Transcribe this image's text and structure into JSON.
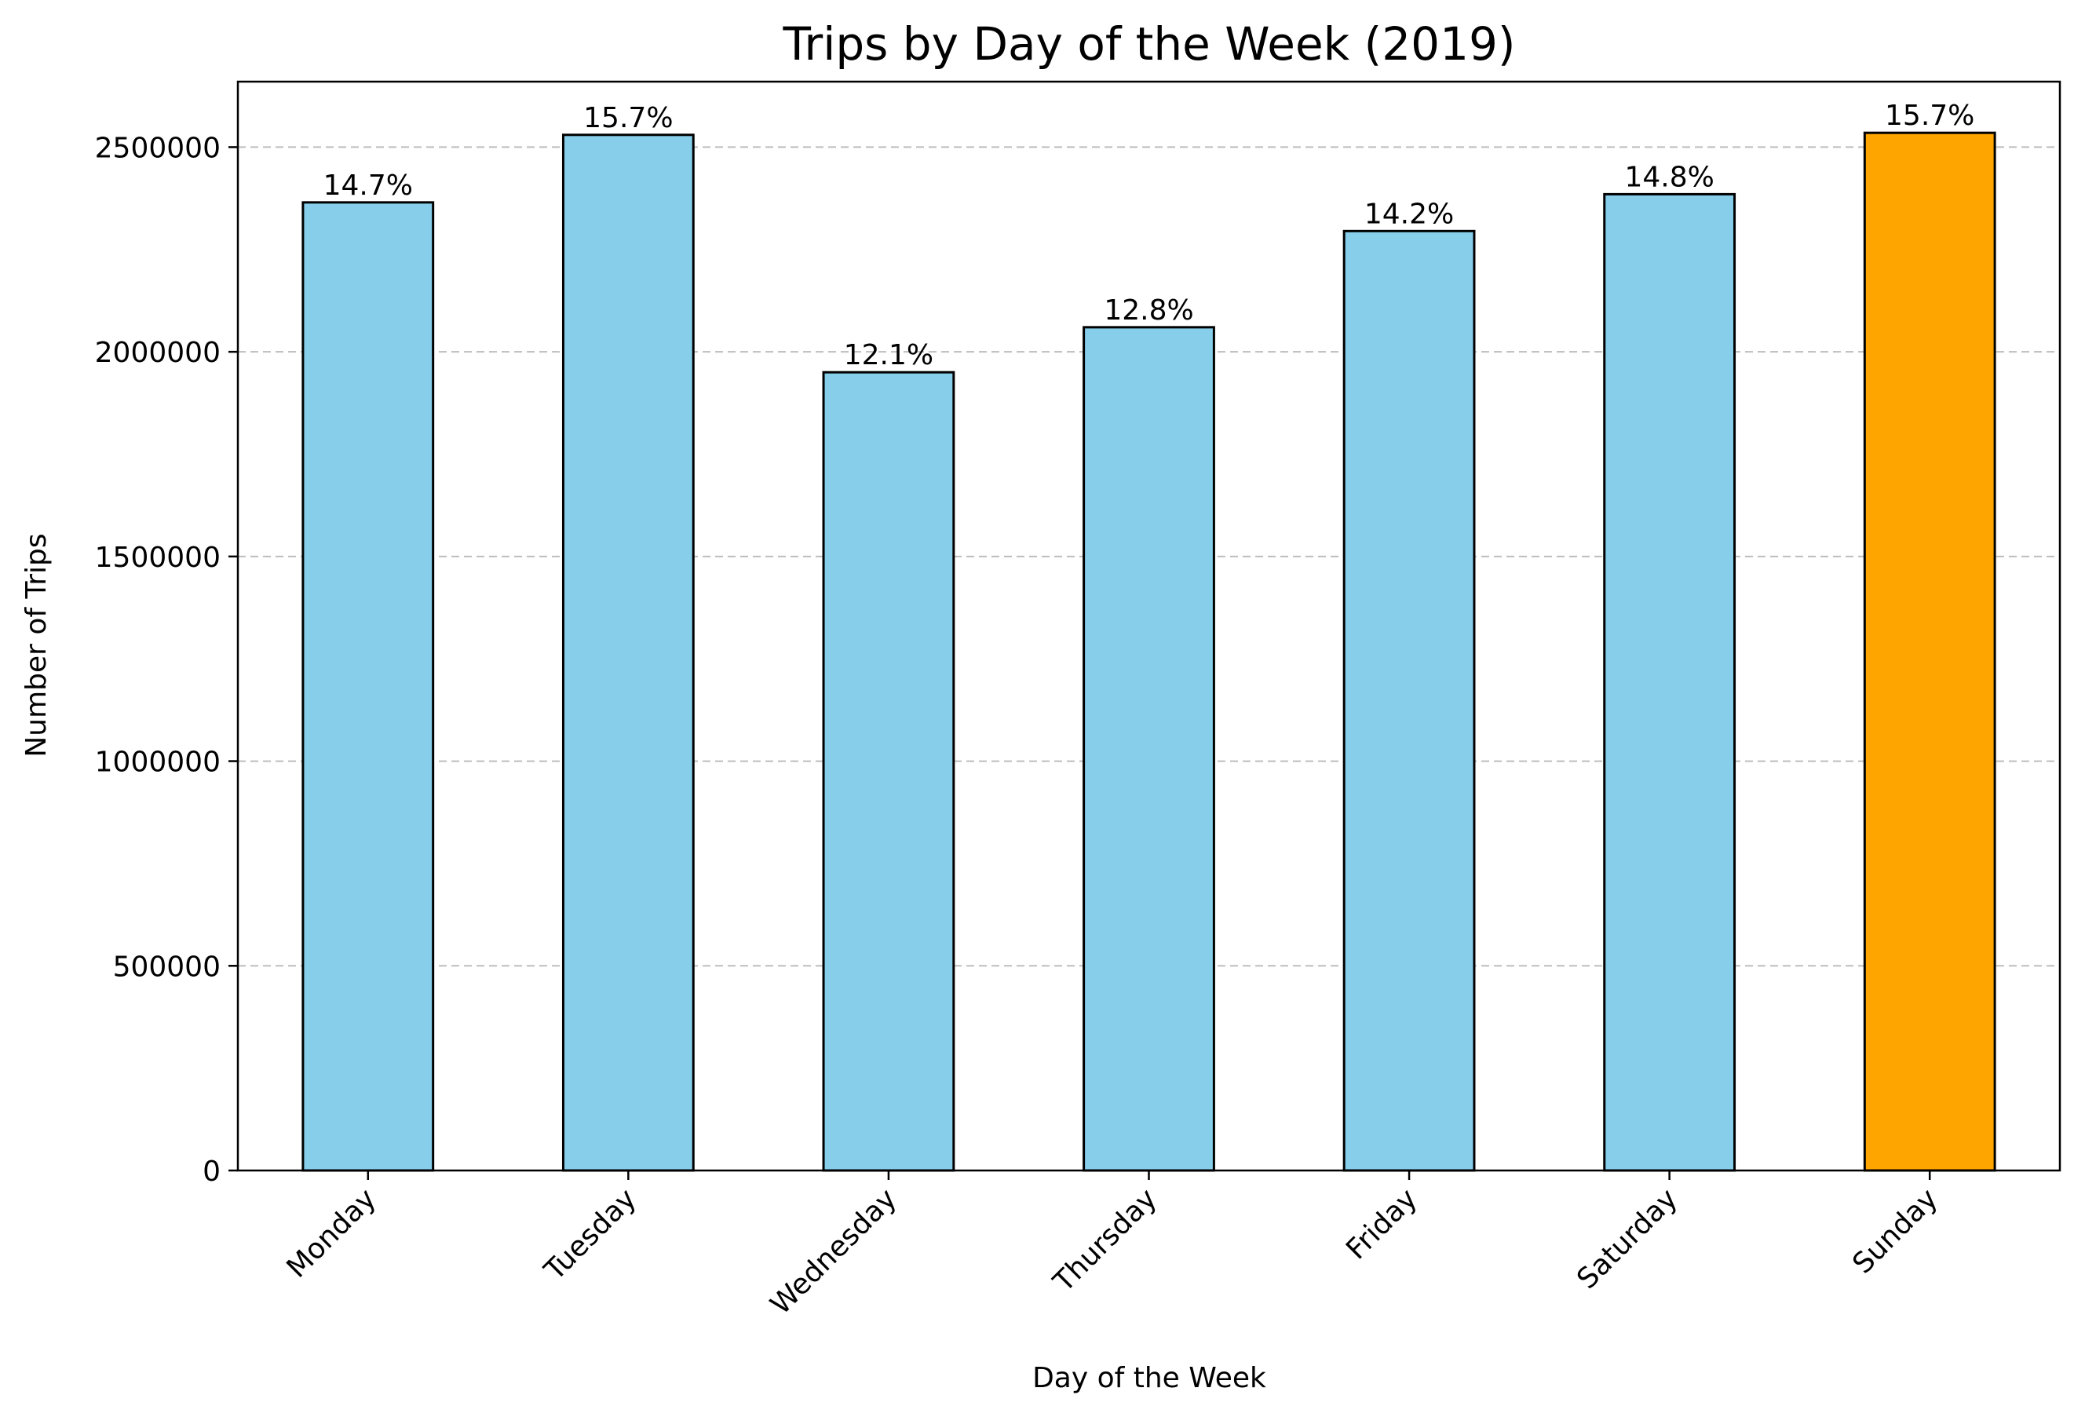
{
  "chart_data": {
    "type": "bar",
    "title": "Trips by Day of the Week (2019)",
    "xlabel": "Day of the Week",
    "ylabel": "Number of Trips",
    "categories": [
      "Monday",
      "Tuesday",
      "Wednesday",
      "Thursday",
      "Friday",
      "Saturday",
      "Sunday"
    ],
    "values": [
      2365000,
      2530000,
      1950000,
      2060000,
      2295000,
      2385000,
      2535000
    ],
    "data_labels": [
      "14.7%",
      "15.7%",
      "12.1%",
      "12.8%",
      "14.2%",
      "14.8%",
      "15.7%"
    ],
    "bar_colors": [
      "#87CEEB",
      "#87CEEB",
      "#87CEEB",
      "#87CEEB",
      "#87CEEB",
      "#87CEEB",
      "#FFA500"
    ],
    "ylim": [
      0,
      2660000
    ],
    "yticks": [
      0,
      500000,
      1000000,
      1500000,
      2000000,
      2500000
    ],
    "ytick_labels": [
      "0",
      "500000",
      "1000000",
      "1500000",
      "2000000",
      "2500000"
    ],
    "grid": "y-dashed",
    "tick_label_rotation": 45
  }
}
